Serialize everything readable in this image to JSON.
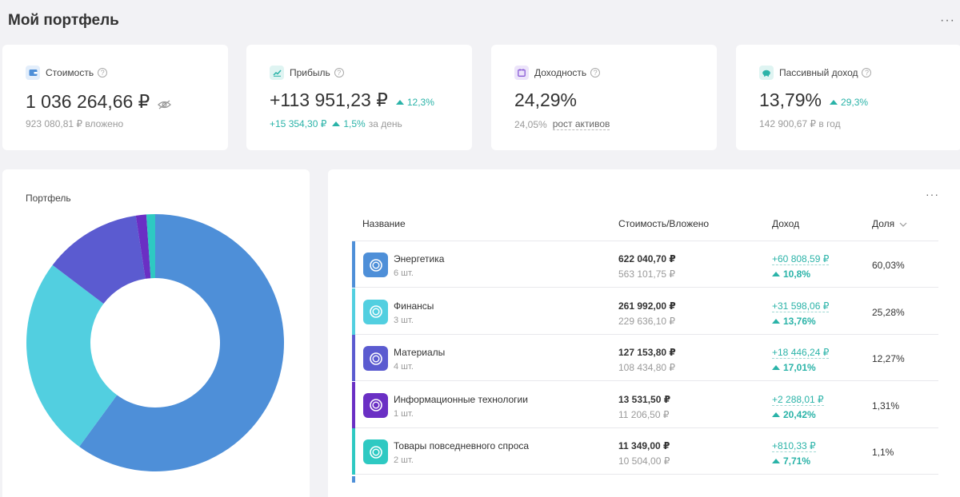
{
  "page": {
    "title": "Мой портфель",
    "more_label": "···"
  },
  "kpis": {
    "value": {
      "label": "Стоимость",
      "help": "?",
      "amount": "1 036 264,66 ₽",
      "sub": "923 080,81 ₽ вложено",
      "icon": "wallet-icon",
      "icon_color": "#4e8fd8",
      "icon_bg": "#e3eefb"
    },
    "profit": {
      "label": "Прибыль",
      "help": "?",
      "amount": "+113 951,23 ₽",
      "delta": "12,3%",
      "day_amount": "+15 354,30 ₽",
      "day_pct": "1,5%",
      "day_suffix": "за день",
      "icon": "chart-line-icon",
      "icon_color": "#2ab3a8",
      "icon_bg": "#dff4f2"
    },
    "yield": {
      "label": "Доходность",
      "help": "?",
      "amount": "24,29%",
      "sub_value": "24,05%",
      "sub_link": "рост активов",
      "icon": "calendar-icon",
      "icon_color": "#8a5cd6",
      "icon_bg": "#ece4fa"
    },
    "passive": {
      "label": "Пассивный доход",
      "help": "?",
      "amount": "13,79%",
      "delta": "29,3%",
      "sub": "142 900,67 ₽ в год",
      "icon": "piggy-bank-icon",
      "icon_color": "#2ab3a8",
      "icon_bg": "#dff4f2"
    }
  },
  "chart_card": {
    "title": "Портфель"
  },
  "table": {
    "more_label": "···",
    "headers": {
      "name": "Название",
      "cost": "Стоимость/Вложено",
      "income": "Доход",
      "share": "Доля",
      "sort_icon": "chevron-down-icon"
    },
    "rows": [
      {
        "name": "Энергетика",
        "qty": "6 шт.",
        "cost": "622 040,70 ₽",
        "invested": "563 101,75 ₽",
        "income": "+60 808,59 ₽",
        "income_pct": "10,8%",
        "share": "60,03%",
        "color": "#4e8fd8"
      },
      {
        "name": "Финансы",
        "qty": "3 шт.",
        "cost": "261 992,00 ₽",
        "invested": "229 636,10 ₽",
        "income": "+31 598,06 ₽",
        "income_pct": "13,76%",
        "share": "25,28%",
        "color": "#52cfe0"
      },
      {
        "name": "Материалы",
        "qty": "4 шт.",
        "cost": "127 153,80 ₽",
        "invested": "108 434,80 ₽",
        "income": "+18 446,24 ₽",
        "income_pct": "17,01%",
        "share": "12,27%",
        "color": "#5b5bd0"
      },
      {
        "name": "Информационные технологии",
        "qty": "1 шт.",
        "cost": "13 531,50 ₽",
        "invested": "11 206,50 ₽",
        "income": "+2 288,01 ₽",
        "income_pct": "20,42%",
        "share": "1,31%",
        "color": "#6a2fc4"
      },
      {
        "name": "Товары повседневного спроса",
        "qty": "2 шт.",
        "cost": "11 349,00 ₽",
        "invested": "10 504,00 ₽",
        "income": "+810,33 ₽",
        "income_pct": "7,71%",
        "share": "1,1%",
        "color": "#2ec9c2"
      }
    ]
  },
  "chart_data": {
    "type": "pie",
    "donut": true,
    "categories": [
      "Энергетика",
      "Финансы",
      "Материалы",
      "Информационные технологии",
      "Товары повседневного спроса"
    ],
    "values": [
      60.03,
      25.28,
      12.27,
      1.31,
      1.1
    ],
    "colors": [
      "#4e8fd8",
      "#52cfe0",
      "#5b5bd0",
      "#6a2fc4",
      "#2ec9c2"
    ],
    "title": "Портфель"
  }
}
